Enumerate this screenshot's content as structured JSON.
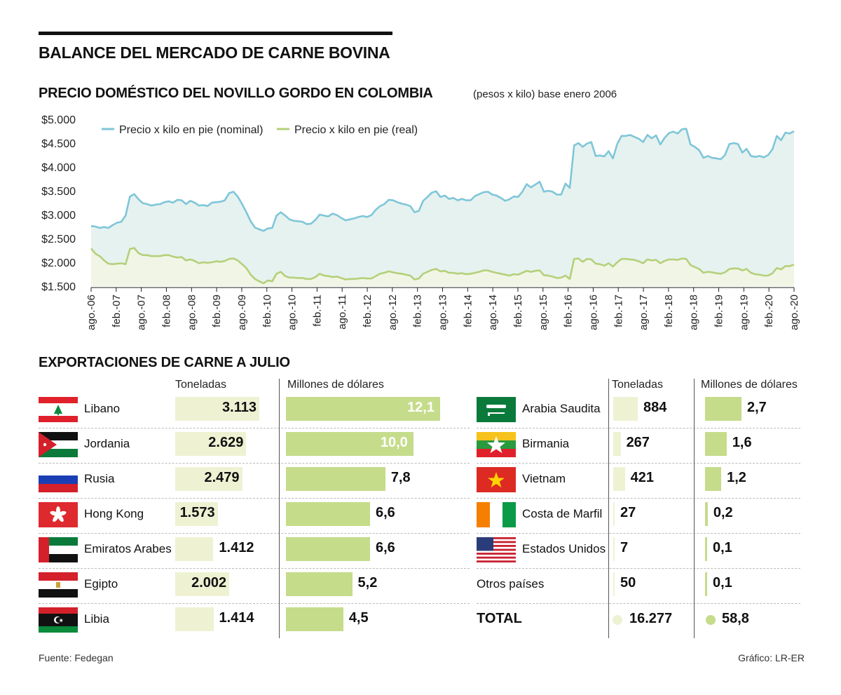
{
  "title": "BALANCE DEL MERCADO DE CARNE BOVINA",
  "price_section": {
    "title": "PRECIO DOMÉSTICO DEL NOVILLO GORDO EN COLOMBIA",
    "note": "(pesos x kilo) base enero 2006"
  },
  "chart_data": {
    "type": "area",
    "title": "PRECIO DOMÉSTICO DEL NOVILLO GORDO EN COLOMBIA",
    "ylim": [
      1500,
      5000
    ],
    "y_ticks": [
      "$5.000",
      "$4.500",
      "$4.000",
      "$3.500",
      "$3.000",
      "$2.500",
      "$2.000",
      "$1.500"
    ],
    "y_tick_values": [
      5000,
      4500,
      4000,
      3500,
      3000,
      2500,
      2000,
      1500
    ],
    "x_ticks": [
      "ago.-06",
      "feb.-07",
      "ago.-07",
      "feb.-08",
      "ago.-08",
      "feb.-09",
      "ago.-09",
      "feb.-10",
      "ago.-10",
      "feb.-11",
      "ago.-11",
      "feb.-12",
      "ago.-12",
      "feb.-13",
      "ago.-13",
      "feb.-14",
      "ago.-14",
      "feb.-15",
      "ago.-15",
      "feb.-16",
      "ago.-16",
      "feb.-17",
      "ago.-17",
      "feb.-18",
      "ago.-18",
      "feb.-19",
      "ago.-19",
      "feb.-20",
      "ago.-20"
    ],
    "legend_position": "top-left",
    "series": [
      {
        "name": "Precio x kilo en pie (nominal)",
        "color": "#7fc6d9",
        "fill": "#e6f2ef",
        "values": [
          2760,
          2750,
          2720,
          2740,
          2720,
          2780,
          2830,
          2850,
          2980,
          3380,
          3430,
          3320,
          3240,
          3220,
          3190,
          3210,
          3220,
          3260,
          3280,
          3250,
          3310,
          3300,
          3220,
          3290,
          3250,
          3190,
          3200,
          3180,
          3250,
          3260,
          3270,
          3300,
          3450,
          3480,
          3380,
          3220,
          3050,
          2860,
          2730,
          2690,
          2660,
          2710,
          2720,
          2980,
          3050,
          2980,
          2900,
          2870,
          2860,
          2850,
          2800,
          2810,
          2890,
          3000,
          2980,
          2960,
          3020,
          2990,
          2930,
          2880,
          2900,
          2920,
          2950,
          2970,
          2950,
          2990,
          3100,
          3180,
          3220,
          3310,
          3300,
          3260,
          3230,
          3210,
          3180,
          3050,
          3080,
          3290,
          3370,
          3460,
          3490,
          3370,
          3400,
          3330,
          3350,
          3300,
          3330,
          3300,
          3300,
          3390,
          3430,
          3470,
          3480,
          3420,
          3400,
          3350,
          3290,
          3320,
          3380,
          3370,
          3480,
          3640,
          3570,
          3630,
          3690,
          3480,
          3500,
          3480,
          3420,
          3420,
          3650,
          3560,
          4450,
          4500,
          4420,
          4490,
          4520,
          4230,
          4240,
          4220,
          4330,
          4180,
          4480,
          4650,
          4650,
          4670,
          4630,
          4590,
          4520,
          4670,
          4600,
          4660,
          4470,
          4610,
          4710,
          4740,
          4700,
          4790,
          4800,
          4470,
          4420,
          4350,
          4190,
          4230,
          4190,
          4180,
          4160,
          4250,
          4480,
          4500,
          4480,
          4300,
          4380,
          4230,
          4210,
          4230,
          4200,
          4250,
          4370,
          4650,
          4560,
          4720,
          4700,
          4750
        ]
      },
      {
        "name": "Precio x kilo en pie (real)",
        "color": "#b5d07a",
        "fill": "#f1f5e6",
        "values": [
          2290,
          2180,
          2130,
          2040,
          1970,
          1960,
          1970,
          1980,
          1960,
          2280,
          2300,
          2190,
          2150,
          2150,
          2130,
          2130,
          2130,
          2150,
          2150,
          2120,
          2100,
          2110,
          2040,
          2060,
          2030,
          1980,
          2000,
          1990,
          2000,
          2020,
          2010,
          2030,
          2070,
          2080,
          2040,
          1960,
          1880,
          1740,
          1650,
          1600,
          1560,
          1620,
          1600,
          1760,
          1800,
          1710,
          1680,
          1680,
          1670,
          1670,
          1650,
          1650,
          1690,
          1760,
          1720,
          1710,
          1690,
          1700,
          1670,
          1640,
          1650,
          1650,
          1660,
          1670,
          1660,
          1660,
          1710,
          1760,
          1780,
          1810,
          1790,
          1770,
          1760,
          1740,
          1720,
          1640,
          1660,
          1760,
          1800,
          1840,
          1860,
          1810,
          1820,
          1780,
          1780,
          1760,
          1770,
          1750,
          1760,
          1780,
          1800,
          1830,
          1830,
          1800,
          1780,
          1760,
          1740,
          1720,
          1750,
          1740,
          1780,
          1820,
          1800,
          1820,
          1830,
          1730,
          1720,
          1700,
          1670,
          1680,
          1720,
          1650,
          2070,
          2080,
          2010,
          2070,
          2060,
          1970,
          1960,
          1930,
          1980,
          1910,
          2000,
          2070,
          2070,
          2060,
          2050,
          2020,
          1980,
          2060,
          2040,
          2050,
          1980,
          2030,
          2060,
          2060,
          2050,
          2080,
          2070,
          1940,
          1900,
          1860,
          1780,
          1800,
          1790,
          1770,
          1760,
          1790,
          1860,
          1870,
          1870,
          1830,
          1860,
          1780,
          1750,
          1740,
          1720,
          1720,
          1770,
          1880,
          1850,
          1920,
          1920,
          1950
        ]
      }
    ]
  },
  "exports": {
    "title": "EXPORTACIONES DE CARNE A JULIO",
    "col_tons": "Toneladas",
    "col_usd": "Millones de dólares",
    "left": [
      {
        "country": "Libano",
        "flag": "lebanon-flag",
        "tons": "3.113",
        "tons_num": 3113,
        "usd": "12,1",
        "usd_num": 12.1
      },
      {
        "country": "Jordania",
        "flag": "jordan-flag",
        "tons": "2.629",
        "tons_num": 2629,
        "usd": "10,0",
        "usd_num": 10.0
      },
      {
        "country": "Rusia",
        "flag": "russia-flag",
        "tons": "2.479",
        "tons_num": 2479,
        "usd": "7,8",
        "usd_num": 7.8
      },
      {
        "country": "Hong Kong",
        "flag": "hong-kong-flag",
        "tons": "1.573",
        "tons_num": 1573,
        "usd": "6,6",
        "usd_num": 6.6
      },
      {
        "country": "Emiratos Arabes",
        "flag": "uae-flag",
        "tons": "1.412",
        "tons_num": 1412,
        "usd": "6,6",
        "usd_num": 6.6
      },
      {
        "country": "Egipto",
        "flag": "egypt-flag",
        "tons": "2.002",
        "tons_num": 2002,
        "usd": "5,2",
        "usd_num": 5.2
      },
      {
        "country": "Libia",
        "flag": "libya-flag",
        "tons": "1.414",
        "tons_num": 1414,
        "usd": "4,5",
        "usd_num": 4.5
      }
    ],
    "right": [
      {
        "country": "Arabia Saudita",
        "flag": "saudi-arabia-flag",
        "tons": "884",
        "tons_num": 884,
        "usd": "2,7",
        "usd_num": 2.7
      },
      {
        "country": "Birmania",
        "flag": "myanmar-flag",
        "tons": "267",
        "tons_num": 267,
        "usd": "1,6",
        "usd_num": 1.6
      },
      {
        "country": "Vietnam",
        "flag": "vietnam-flag",
        "tons": "421",
        "tons_num": 421,
        "usd": "1,2",
        "usd_num": 1.2
      },
      {
        "country": "Costa de Marfil",
        "flag": "ivory-coast-flag",
        "tons": "27",
        "tons_num": 27,
        "usd": "0,2",
        "usd_num": 0.2
      },
      {
        "country": "Estados Unidos",
        "flag": "usa-flag",
        "tons": "7",
        "tons_num": 7,
        "usd": "0,1",
        "usd_num": 0.1
      },
      {
        "country": "Otros países",
        "flag": "",
        "tons": "50",
        "tons_num": 50,
        "usd": "0,1",
        "usd_num": 0.1
      }
    ],
    "total_label": "TOTAL",
    "total_tons": "16.277",
    "total_usd": "58,8"
  },
  "footer": {
    "source": "Fuente: Fedegan",
    "credit": "Gráfico: LR-ER"
  }
}
